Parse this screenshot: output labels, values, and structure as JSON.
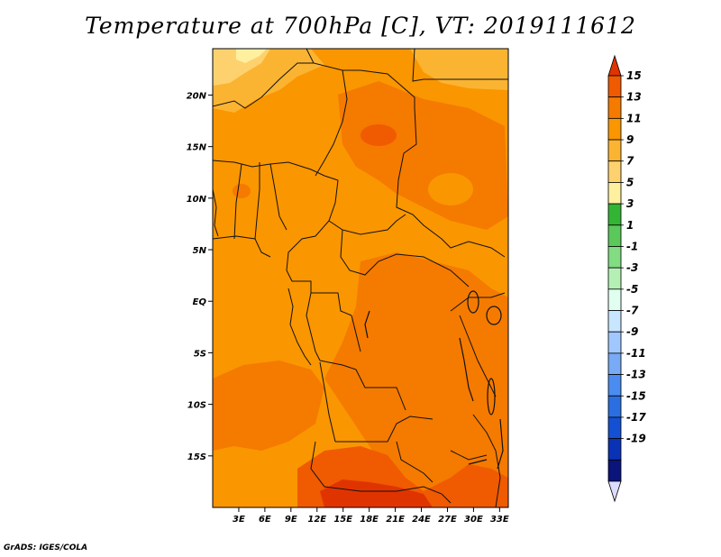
{
  "title": "Temperature at 700hPa [C], VT: 2019111612",
  "credit": "GrADS: IGES/COLA",
  "map": {
    "region": "Central Africa",
    "lon_range": [
      0,
      34
    ],
    "lat_range": [
      -20,
      24.5
    ],
    "lat_ticks": [
      {
        "value": 20,
        "label": "20N"
      },
      {
        "value": 15,
        "label": "15N"
      },
      {
        "value": 10,
        "label": "10N"
      },
      {
        "value": 5,
        "label": "5N"
      },
      {
        "value": 0,
        "label": "EQ"
      },
      {
        "value": -5,
        "label": "5S"
      },
      {
        "value": -10,
        "label": "10S"
      },
      {
        "value": -15,
        "label": "15S"
      }
    ],
    "lon_ticks": [
      {
        "value": 3,
        "label": "3E"
      },
      {
        "value": 6,
        "label": "6E"
      },
      {
        "value": 9,
        "label": "9E"
      },
      {
        "value": 12,
        "label": "12E"
      },
      {
        "value": 15,
        "label": "15E"
      },
      {
        "value": 18,
        "label": "18E"
      },
      {
        "value": 21,
        "label": "21E"
      },
      {
        "value": 24,
        "label": "24E"
      },
      {
        "value": 27,
        "label": "27E"
      },
      {
        "value": 30,
        "label": "30E"
      },
      {
        "value": 33,
        "label": "33E"
      }
    ]
  },
  "colorbar": {
    "labels": [
      "15",
      "13",
      "11",
      "9",
      "7",
      "5",
      "3",
      "1",
      "-1",
      "-3",
      "-5",
      "-7",
      "-9",
      "-11",
      "-13",
      "-15",
      "-17",
      "-19"
    ],
    "colors": [
      "#e03400",
      "#f05a00",
      "#f57a00",
      "#fa9600",
      "#fbb432",
      "#fdd26e",
      "#fff0a0",
      "#34b434",
      "#5ac85a",
      "#82dc82",
      "#b4f0b4",
      "#e1fff0",
      "#c8e6ff",
      "#a0c8ff",
      "#78aaf5",
      "#4b8cf0",
      "#2b6ee1",
      "#1450d2",
      "#0a32b4",
      "#0a147a",
      "#dcdcff"
    ]
  }
}
